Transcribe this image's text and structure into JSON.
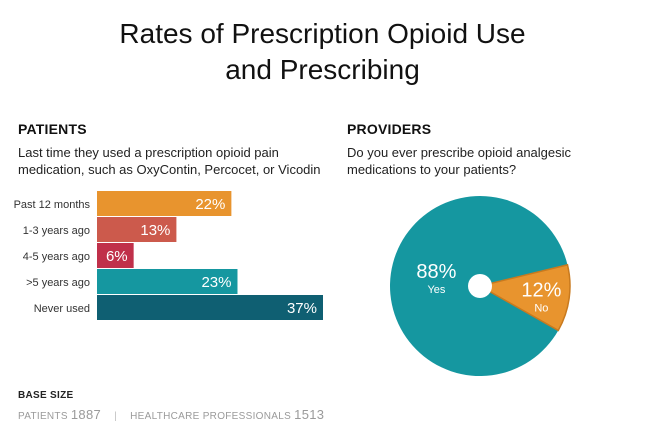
{
  "title": {
    "line1": "Rates of Prescription Opioid Use",
    "line2": "and Prescribing"
  },
  "patients": {
    "heading": "PATIENTS",
    "question_line1": "Last time they used a prescription opioid pain",
    "question_line2": "medication, such as OxyContin, Percocet, or Vicodin"
  },
  "providers": {
    "heading": "PROVIDERS",
    "question_line1": "Do you ever prescribe opioid analgesic",
    "question_line2": "medications to your patients?"
  },
  "chart_data": [
    {
      "type": "bar",
      "orientation": "horizontal",
      "categories": [
        "Past 12 months",
        "1-3 years ago",
        "4-5 years ago",
        ">5 years ago",
        "Never used"
      ],
      "values": [
        22,
        13,
        6,
        23,
        37
      ],
      "value_labels": [
        "22%",
        "13%",
        "6%",
        "23%",
        "37%"
      ],
      "colors": [
        "#e8942e",
        "#cc5a4c",
        "#c0304a",
        "#1597a0",
        "#0f5f72"
      ],
      "unit": "%"
    },
    {
      "type": "pie",
      "categories": [
        "Yes",
        "No"
      ],
      "values": [
        88,
        12
      ],
      "value_labels": [
        "88%",
        "12%"
      ],
      "colors": [
        "#1597a0",
        "#e8942e"
      ],
      "edge_color": "#c97a1e",
      "donut_hole": true
    }
  ],
  "base_size": {
    "title": "BASE SIZE",
    "patients_label": "PATIENTS",
    "patients_value": "1887",
    "separator": "|",
    "hcp_label": "HEALTHCARE PROFESSIONALS",
    "hcp_value": "1513"
  }
}
